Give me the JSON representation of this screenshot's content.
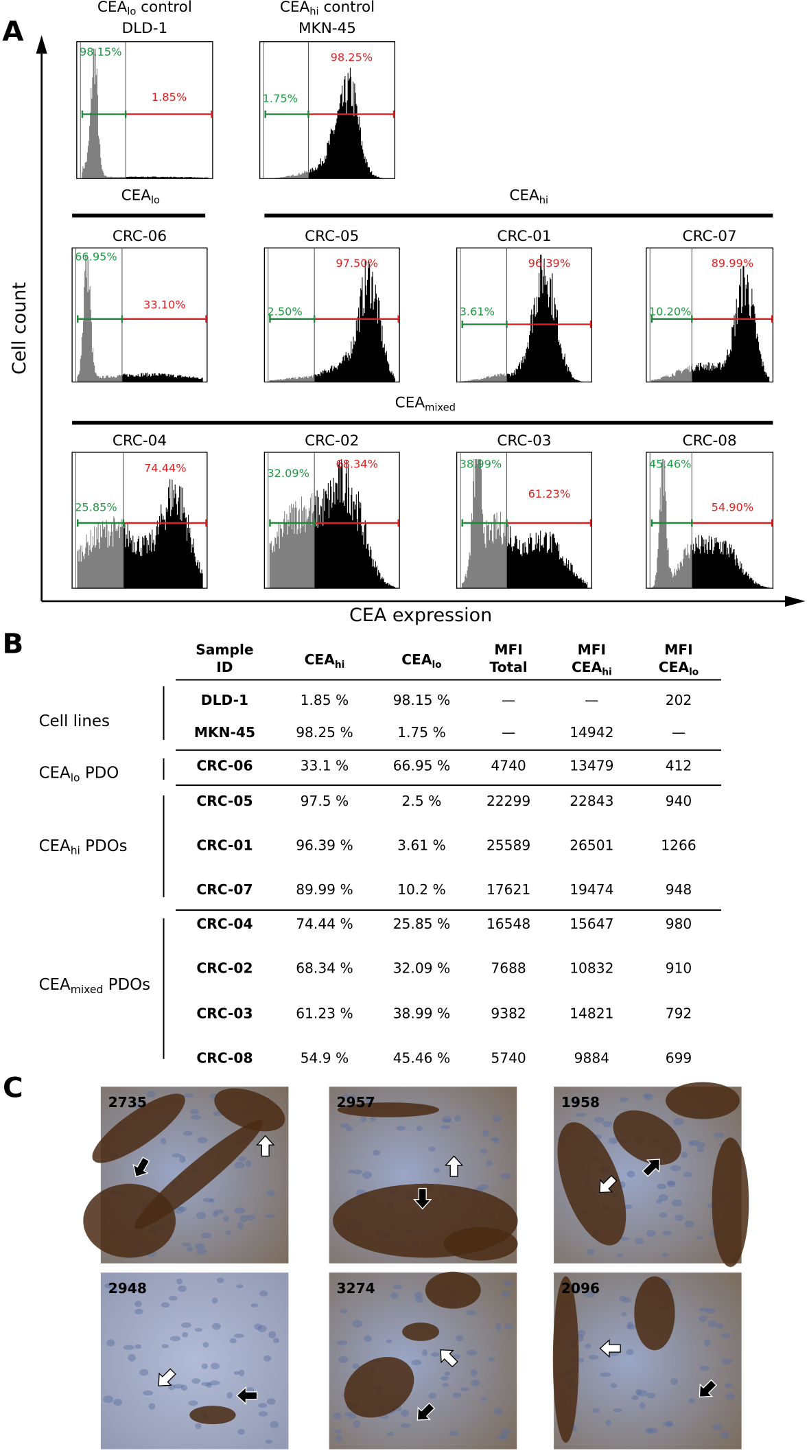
{
  "panel_a": {
    "label": "A",
    "y_axis": "Cell count",
    "x_axis": "CEA expression",
    "groups": [
      {
        "label": [
          "CEA",
          "lo"
        ]
      },
      {
        "label": [
          "CEA",
          "hi"
        ]
      },
      {
        "label": [
          "CEA",
          "mixed"
        ]
      }
    ],
    "histograms": [
      {
        "title": [
          [
            "CEA",
            "lo",
            " control"
          ],
          [
            "DLD-1"
          ]
        ],
        "green": "98.15%",
        "red": "1.85%"
      },
      {
        "title": [
          [
            "CEA",
            "hi",
            " control"
          ],
          [
            "MKN-45"
          ]
        ],
        "green": "1.75%",
        "red": "98.25%"
      },
      {
        "title": [
          [
            "CRC-06"
          ]
        ],
        "green": "66.95%",
        "red": "33.10%"
      },
      {
        "title": [
          [
            "CRC-05"
          ]
        ],
        "green": "2.50%",
        "red": "97.50%"
      },
      {
        "title": [
          [
            "CRC-01"
          ]
        ],
        "green": "3.61%",
        "red": "96.39%"
      },
      {
        "title": [
          [
            "CRC-07"
          ]
        ],
        "green": "10.20%",
        "red": "89.99%"
      },
      {
        "title": [
          [
            "CRC-04"
          ]
        ],
        "green": "25.85%",
        "red": "74.44%"
      },
      {
        "title": [
          [
            "CRC-02"
          ]
        ],
        "green": "32.09%",
        "red": "68.34%"
      },
      {
        "title": [
          [
            "CRC-03"
          ]
        ],
        "green": "38.99%",
        "red": "61.23%"
      },
      {
        "title": [
          [
            "CRC-08"
          ]
        ],
        "green": "45.46%",
        "red": "54.90%"
      }
    ]
  },
  "panel_b": {
    "label": "B",
    "headers": [
      [
        [
          "Sample"
        ],
        [
          "ID"
        ]
      ],
      [
        [
          "CEA",
          "hi"
        ]
      ],
      [
        [
          "CEA",
          "lo"
        ]
      ],
      [
        [
          "MFI"
        ],
        [
          "Total"
        ]
      ],
      [
        [
          "MFI"
        ],
        [
          "CEA",
          "hi"
        ]
      ],
      [
        [
          "MFI"
        ],
        [
          "CEA",
          "lo"
        ]
      ]
    ],
    "groups": [
      {
        "label": [
          "Cell lines"
        ],
        "rows": [
          [
            "DLD-1",
            "1.85 %",
            "98.15 %",
            "—",
            "—",
            "202"
          ],
          [
            "MKN-45",
            "98.25 %",
            "1.75 %",
            "—",
            "14942",
            "—"
          ]
        ]
      },
      {
        "label": [
          "CEA",
          "lo",
          " PDO"
        ],
        "rows": [
          [
            "CRC-06",
            "33.1 %",
            "66.95 %",
            "4740",
            "13479",
            "412"
          ]
        ]
      },
      {
        "label": [
          "CEA",
          "hi",
          " PDOs"
        ],
        "rows": [
          [
            "CRC-05",
            "97.5 %",
            "2.5 %",
            "22299",
            "22843",
            "940"
          ],
          [
            "CRC-01",
            "96.39 %",
            "3.61 %",
            "25589",
            "26501",
            "1266"
          ],
          [
            "CRC-07",
            "89.99 %",
            "10.2 %",
            "17621",
            "19474",
            "948"
          ]
        ]
      },
      {
        "label": [
          "CEA",
          "mixed",
          " PDOs"
        ],
        "rows": [
          [
            "CRC-04",
            "74.44 %",
            "25.85 %",
            "16548",
            "15647",
            "980"
          ],
          [
            "CRC-02",
            "68.34 %",
            "32.09 %",
            "7688",
            "10832",
            "910"
          ],
          [
            "CRC-03",
            "61.23 %",
            "38.99 %",
            "9382",
            "14821",
            "792"
          ],
          [
            "CRC-08",
            "54.9 %",
            "45.46 %",
            "5740",
            "9884",
            "699"
          ]
        ]
      }
    ]
  },
  "panel_c": {
    "label": "C",
    "images": [
      {
        "id": "2735"
      },
      {
        "id": "2957"
      },
      {
        "id": "1958"
      },
      {
        "id": "2948"
      },
      {
        "id": "3274"
      },
      {
        "id": "2096"
      }
    ]
  }
}
